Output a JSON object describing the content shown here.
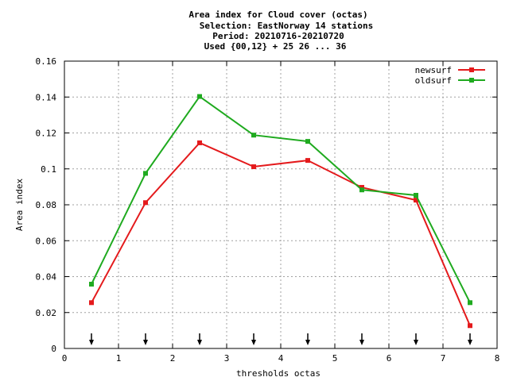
{
  "chart_data": {
    "type": "line",
    "title_lines": [
      "Area index  for Cloud cover (octas)",
      "Selection: EastNorway     14 stations",
      "Period: 20210716-20210720",
      "Used {00,12} + 25 26 ... 36"
    ],
    "xlabel": "thresholds octas",
    "ylabel": "Area index",
    "xlim": [
      0,
      8
    ],
    "ylim": [
      0,
      0.16
    ],
    "x_ticks": [
      "0",
      "1",
      "2",
      "3",
      "4",
      "5",
      "6",
      "7",
      "8"
    ],
    "y_ticks": [
      "0",
      "0.02",
      "0.04",
      "0.06",
      "0.08",
      "0.1",
      "0.12",
      "0.14",
      "0.16"
    ],
    "grid": true,
    "legend_position": "top-right",
    "x": [
      0.5,
      1.5,
      2.5,
      3.5,
      4.5,
      5.5,
      6.5,
      7.5
    ],
    "threshold_arrows_x": [
      0.5,
      1.5,
      2.5,
      3.5,
      4.5,
      5.5,
      6.5,
      7.5
    ],
    "series": [
      {
        "name": "newsurf",
        "color": "#e41a1c",
        "marker": "square",
        "values": [
          0.0255,
          0.0812,
          0.1145,
          0.1012,
          0.1047,
          0.0897,
          0.0826,
          0.0127
        ]
      },
      {
        "name": "oldsurf",
        "color": "#1faa1f",
        "marker": "square",
        "values": [
          0.0358,
          0.0975,
          0.1403,
          0.1188,
          0.1153,
          0.0883,
          0.0853,
          0.0255
        ]
      }
    ]
  }
}
